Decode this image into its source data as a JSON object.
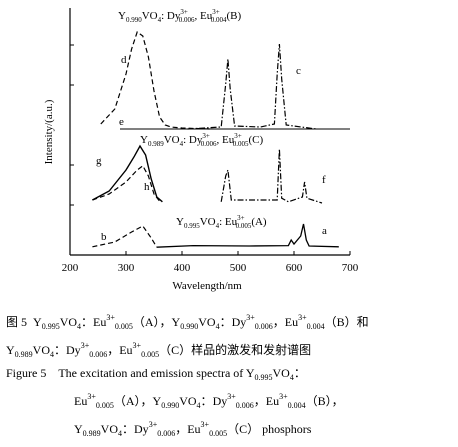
{
  "figure": {
    "xlabel": "Wavelength/nm",
    "ylabel": "Intensity/(a.u.)",
    "xticks": [
      "200",
      "300",
      "400",
      "500",
      "600",
      "700"
    ]
  },
  "chart_data": {
    "type": "line",
    "xlabel": "Wavelength/nm",
    "ylabel": "Intensity/(a.u.)",
    "xlim": [
      200,
      700
    ],
    "xticks": [
      200,
      300,
      400,
      500,
      600,
      700
    ],
    "grid": false,
    "panels": [
      {
        "title": "Y0.990VO4: Dy3+0.006, Eu3+0.004(B)",
        "series": [
          {
            "name": "d",
            "style": "dashed",
            "x": [
              255,
              280,
              300,
              310,
              320,
              330,
              340,
              350,
              360,
              370,
              380,
              400,
              450
            ],
            "y": [
              0.05,
              0.2,
              0.55,
              0.8,
              0.97,
              0.93,
              0.72,
              0.38,
              0.12,
              0.04,
              0.02,
              0.01,
              0.0
            ]
          },
          {
            "name": "c",
            "style": "dash-dot",
            "x": [
              410,
              470,
              478,
              482,
              486,
              494,
              540,
              565,
              570,
              574,
              578,
              586,
              640
            ],
            "y": [
              0.0,
              0.02,
              0.45,
              0.7,
              0.4,
              0.03,
              0.02,
              0.05,
              0.55,
              0.85,
              0.5,
              0.04,
              0.0
            ]
          },
          {
            "name": "e",
            "style": "solid",
            "x": [
              300,
              700
            ],
            "y": [
              0.0,
              0.0
            ]
          }
        ]
      },
      {
        "title": "Y0.989VO4: Dy3+0.006, Eu3+0.005(C)",
        "series": [
          {
            "name": "g",
            "style": "solid",
            "x": [
              240,
              270,
              300,
              315,
              325,
              335,
              345,
              355,
              365
            ],
            "y": [
              0.05,
              0.2,
              0.55,
              0.78,
              0.95,
              0.8,
              0.4,
              0.1,
              0.02
            ]
          },
          {
            "name": "h",
            "style": "dashed",
            "x": [
              240,
              270,
              300,
              320,
              330,
              340,
              350,
              360
            ],
            "y": [
              0.05,
              0.15,
              0.35,
              0.55,
              0.62,
              0.45,
              0.15,
              0.03
            ]
          },
          {
            "name": "f",
            "style": "dash-dot",
            "x": [
              470,
              478,
              482,
              488,
              570,
              574,
              578,
              590,
              615,
              619,
              623,
              650
            ],
            "y": [
              0.02,
              0.45,
              0.55,
              0.05,
              0.05,
              0.9,
              0.08,
              0.02,
              0.1,
              0.35,
              0.08,
              0.0
            ]
          }
        ]
      },
      {
        "title": "Y0.995VO4: Eu3+0.005(A)",
        "series": [
          {
            "name": "b",
            "style": "dashed",
            "x": [
              240,
              280,
              310,
              330,
              345,
              355
            ],
            "y": [
              0.03,
              0.15,
              0.4,
              0.55,
              0.25,
              0.02
            ]
          },
          {
            "name": "a",
            "style": "solid",
            "x": [
              355,
              420,
              520,
              590,
              595,
              600,
              612,
              617,
              622,
              627,
              680
            ],
            "y": [
              0.02,
              0.06,
              0.05,
              0.06,
              0.2,
              0.1,
              0.3,
              0.6,
              0.2,
              0.05,
              0.03
            ]
          }
        ]
      }
    ]
  },
  "caption": {
    "cn_label": "图 5",
    "cn_line1_parts": [
      "Y",
      "0.995",
      "VO",
      "4",
      "：Eu",
      "3+",
      "0.005",
      "（A），Y",
      "0.990",
      "VO",
      "4",
      "：Dy",
      "3+",
      "0.006",
      "，Eu",
      "3+",
      "0.004",
      "（B）和"
    ],
    "cn_line2_parts": [
      "Y",
      "0.989",
      "VO",
      "4",
      "：Dy",
      "3+",
      "0.006",
      "，Eu",
      "3+",
      "0.005",
      "（C）样品的激发和发射谱图"
    ],
    "en_label": "Figure 5",
    "en_line1": "The excitation and emission spectra of Y",
    "en_line1_sub": "0.995",
    "en_line1_tail": "VO",
    "en_line1_tail_sub": "4",
    "en_line1_end": "：",
    "en_line2_parts": [
      "Eu",
      "3+",
      "0.005",
      "（A），",
      "Y",
      "0.990",
      "VO",
      "4",
      "：",
      "Dy",
      "3+",
      "0.006",
      "，",
      "Eu",
      "3+",
      "0.004",
      "（B），"
    ],
    "en_line3_parts": [
      "Y",
      "0.989",
      "VO",
      "4",
      "：Dy",
      "3+",
      "0.006",
      "，Eu",
      "3+",
      "0.005",
      "（C） phosphors"
    ]
  }
}
